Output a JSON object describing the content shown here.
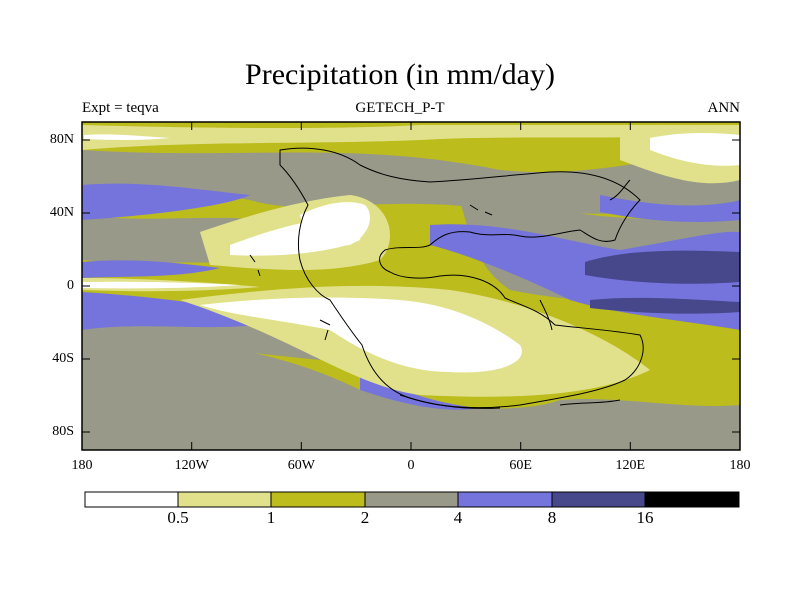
{
  "title": "Precipitation (in mm/day)",
  "left_label": "Expt = teqva",
  "center_label": "GETECH_P-T",
  "right_label": "ANN",
  "lat_ticks": [
    "80N",
    "40N",
    "0",
    "40S",
    "80S"
  ],
  "lon_ticks": [
    "180",
    "120W",
    "60W",
    "0",
    "60E",
    "120E",
    "180"
  ],
  "colorbar": {
    "levels": [
      "0.5",
      "1",
      "2",
      "4",
      "8",
      "16"
    ],
    "colors": [
      "#ffffff",
      "#e1e18c",
      "#bcbc1c",
      "#999989",
      "#7474dc",
      "#47478c",
      "#000000"
    ]
  }
}
